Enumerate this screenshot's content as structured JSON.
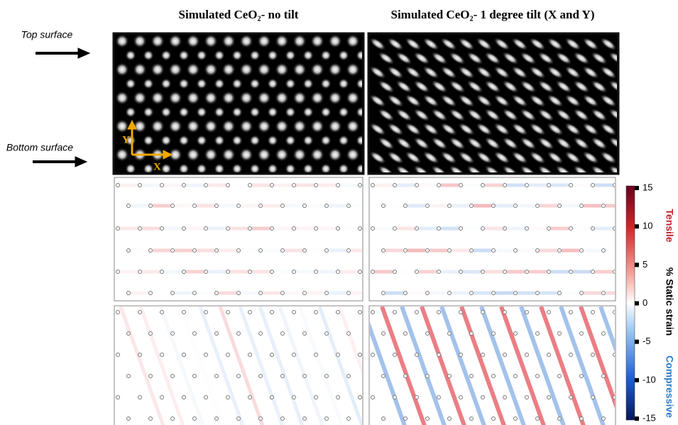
{
  "titles": [
    "Simulated CeO₂- no tilt",
    "Simulated CeO₂- 1 degree tilt (X and Y)"
  ],
  "side_labels": [
    "Top surface",
    "Bottom surface"
  ],
  "axes_labels": {
    "y": "Y",
    "x": "X"
  },
  "colorbar": {
    "lim": [
      -15,
      15
    ],
    "ticks": [
      15,
      10,
      5,
      0,
      -5,
      -10,
      -15
    ],
    "label": "% Static strain",
    "top_label": "Tensile",
    "bottom_label": "Compressive"
  }
}
